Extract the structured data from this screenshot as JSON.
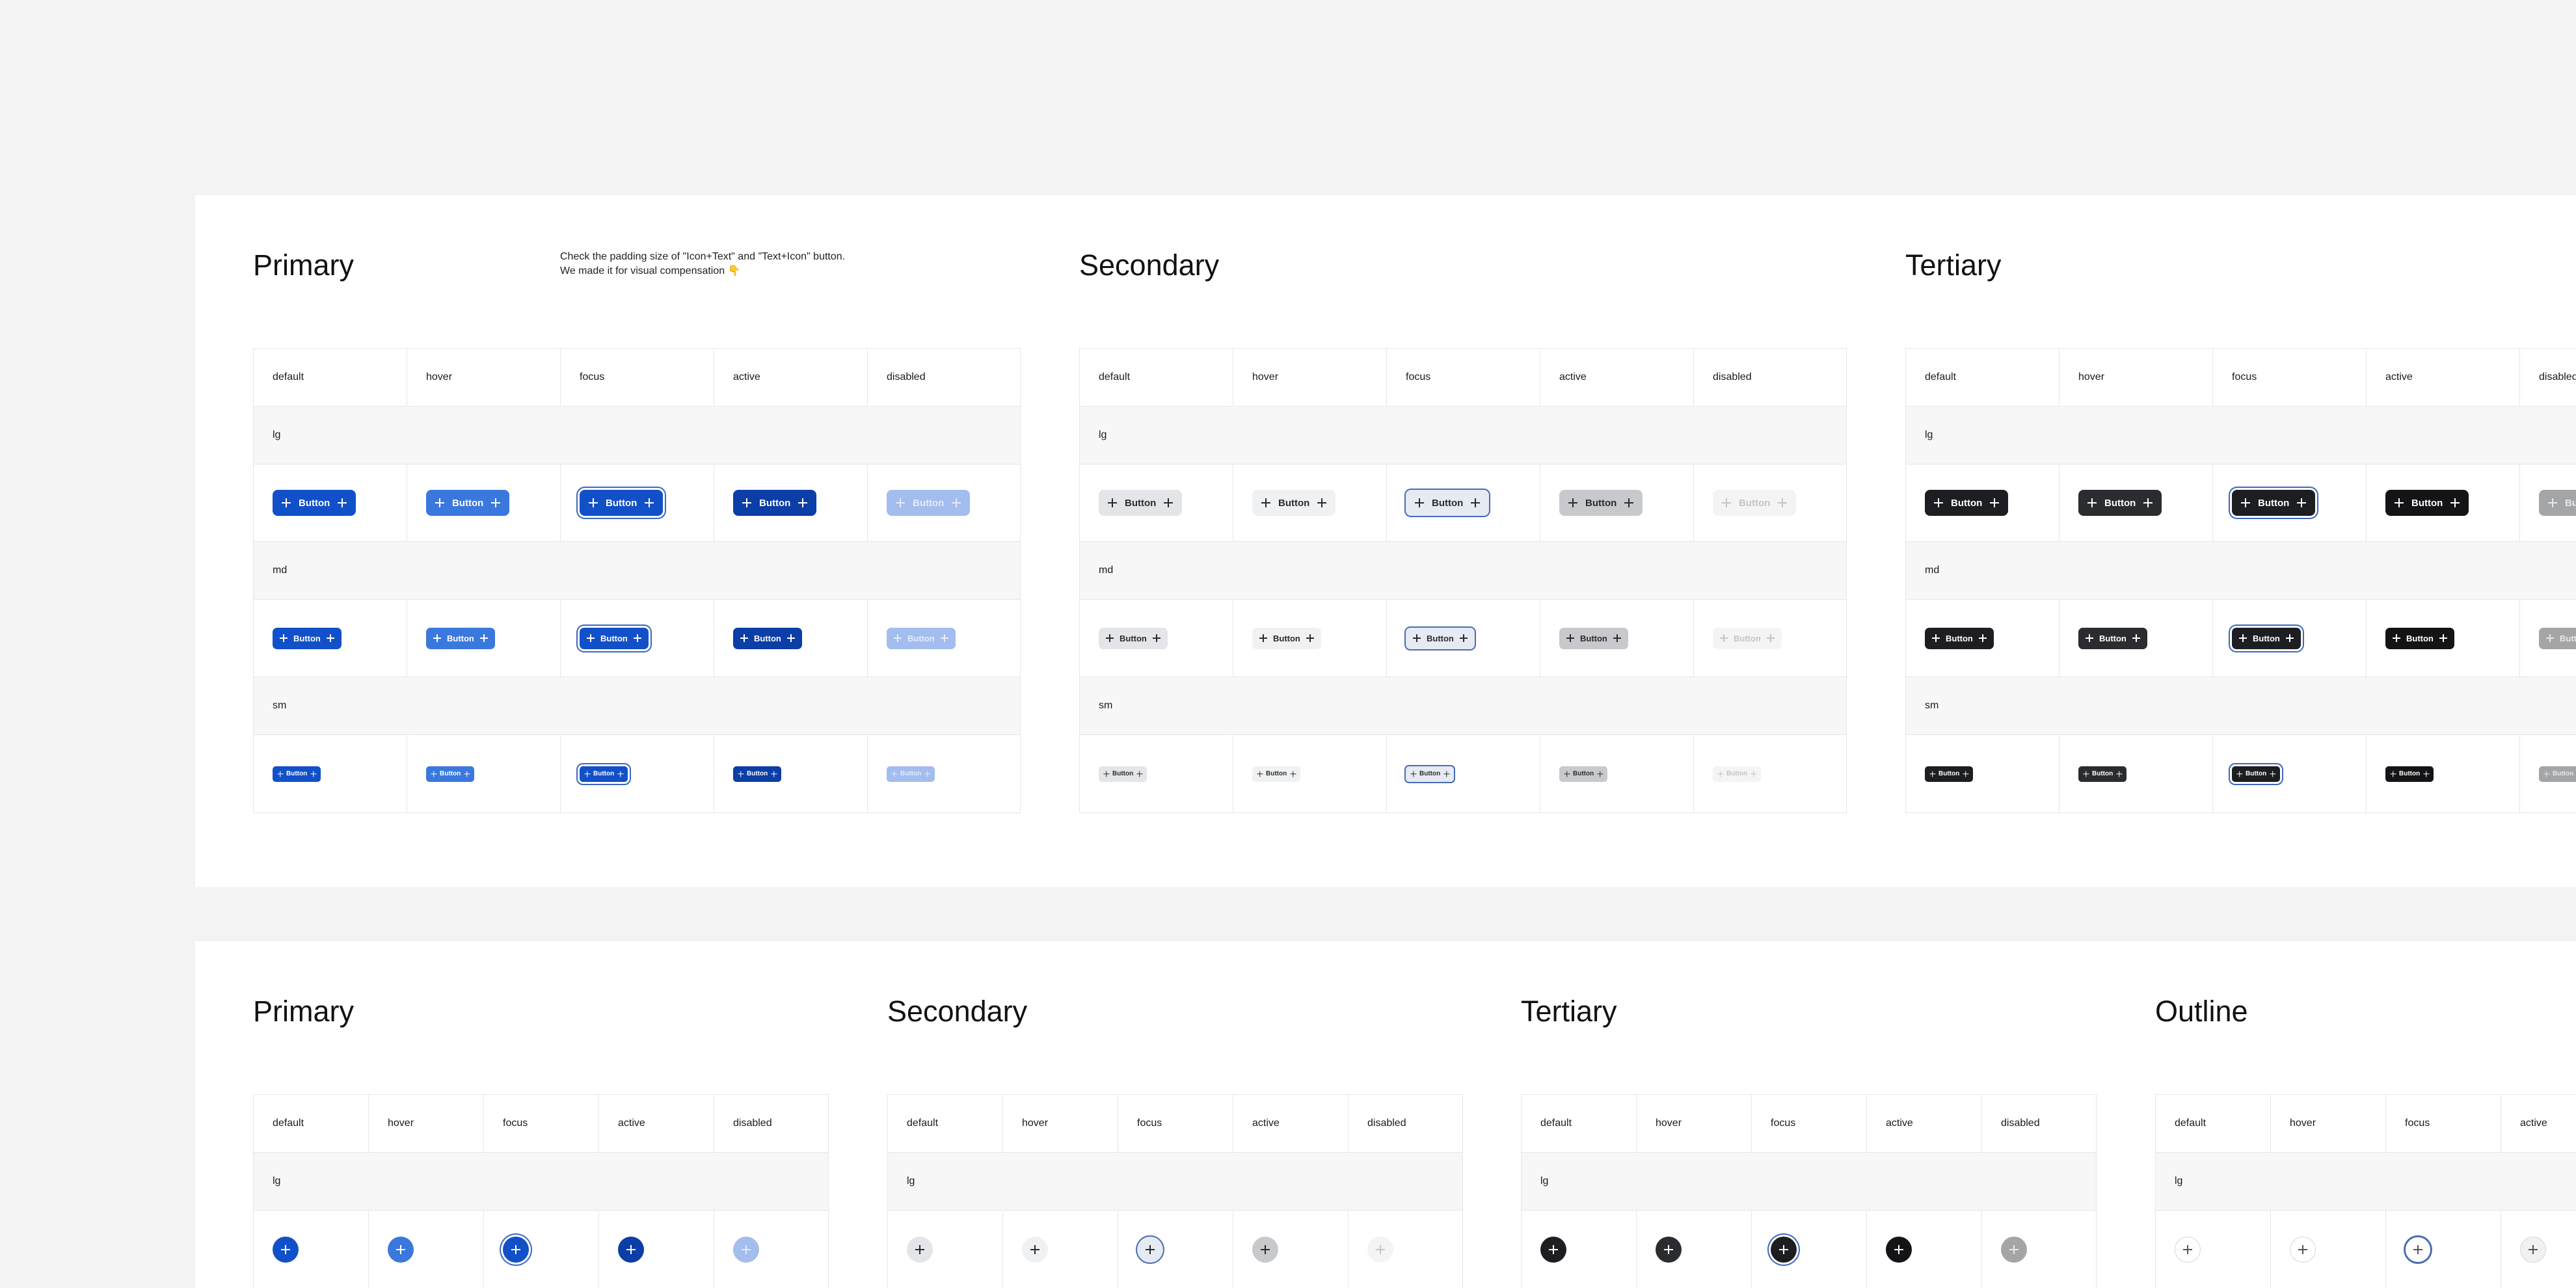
{
  "top": {
    "sections": [
      {
        "title": "Primary"
      },
      {
        "title": "Secondary"
      },
      {
        "title": "Tertiary"
      }
    ],
    "note": [
      "Check the padding size of \"Icon+Text\" and \"Text+Icon\" button.",
      "We made it for visual compensation 👇"
    ],
    "states": [
      "default",
      "hover",
      "focus",
      "active",
      "disabled"
    ],
    "sizes": [
      "lg",
      "md",
      "sm"
    ],
    "button_label": "Button"
  },
  "bottom": {
    "sections": [
      {
        "title": "Primary"
      },
      {
        "title": "Secondary"
      },
      {
        "title": "Tertiary"
      },
      {
        "title": "Outline"
      }
    ],
    "states": [
      "default",
      "hover",
      "focus",
      "active",
      "disabled"
    ],
    "sizes": [
      "lg"
    ]
  }
}
